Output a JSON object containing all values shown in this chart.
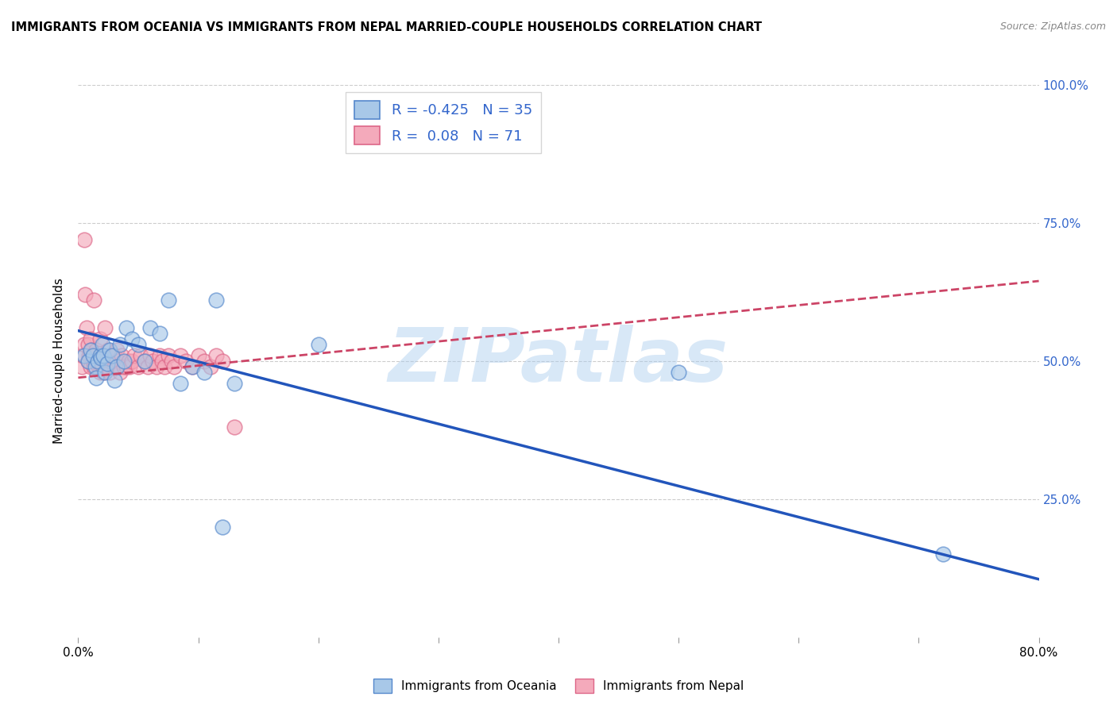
{
  "title": "IMMIGRANTS FROM OCEANIA VS IMMIGRANTS FROM NEPAL MARRIED-COUPLE HOUSEHOLDS CORRELATION CHART",
  "source": "Source: ZipAtlas.com",
  "ylabel": "Married-couple Households",
  "xlim": [
    0.0,
    0.8
  ],
  "ylim": [
    0.0,
    1.0
  ],
  "xticks": [
    0.0,
    0.1,
    0.2,
    0.3,
    0.4,
    0.5,
    0.6,
    0.7,
    0.8
  ],
  "xticklabels": [
    "0.0%",
    "",
    "",
    "",
    "",
    "",
    "",
    "",
    "80.0%"
  ],
  "yticks": [
    0.0,
    0.25,
    0.5,
    0.75,
    1.0
  ],
  "yticklabels_right": [
    "",
    "25.0%",
    "50.0%",
    "75.0%",
    "100.0%"
  ],
  "oceania_color": "#a8c8e8",
  "nepal_color": "#f4aabb",
  "oceania_edge": "#5588cc",
  "nepal_edge": "#dd6688",
  "trendline_oceania_color": "#2255bb",
  "trendline_nepal_color": "#cc4466",
  "legend_oceania_label": "Immigrants from Oceania",
  "legend_nepal_label": "Immigrants from Nepal",
  "R_oceania": -0.425,
  "N_oceania": 35,
  "R_nepal": 0.08,
  "N_nepal": 71,
  "watermark": "ZIPatlas",
  "background_color": "#ffffff",
  "grid_color": "#cccccc",
  "oceania_trendline": [
    0.0,
    0.8,
    0.555,
    0.105
  ],
  "nepal_trendline": [
    0.0,
    0.8,
    0.47,
    0.645
  ],
  "oceania_x": [
    0.005,
    0.008,
    0.01,
    0.012,
    0.014,
    0.015,
    0.016,
    0.018,
    0.019,
    0.02,
    0.021,
    0.022,
    0.024,
    0.026,
    0.028,
    0.03,
    0.032,
    0.035,
    0.038,
    0.04,
    0.045,
    0.05,
    0.055,
    0.06,
    0.068,
    0.075,
    0.085,
    0.095,
    0.105,
    0.115,
    0.12,
    0.13,
    0.2,
    0.5,
    0.72
  ],
  "oceania_y": [
    0.51,
    0.5,
    0.52,
    0.51,
    0.49,
    0.47,
    0.5,
    0.51,
    0.505,
    0.53,
    0.51,
    0.48,
    0.495,
    0.52,
    0.51,
    0.465,
    0.49,
    0.53,
    0.5,
    0.56,
    0.54,
    0.53,
    0.5,
    0.56,
    0.55,
    0.61,
    0.46,
    0.49,
    0.48,
    0.61,
    0.2,
    0.46,
    0.53,
    0.48,
    0.15
  ],
  "nepal_x": [
    0.003,
    0.004,
    0.005,
    0.005,
    0.006,
    0.007,
    0.008,
    0.008,
    0.009,
    0.01,
    0.01,
    0.01,
    0.011,
    0.012,
    0.013,
    0.013,
    0.014,
    0.015,
    0.015,
    0.016,
    0.017,
    0.018,
    0.018,
    0.019,
    0.02,
    0.02,
    0.021,
    0.022,
    0.022,
    0.023,
    0.024,
    0.025,
    0.025,
    0.026,
    0.027,
    0.028,
    0.03,
    0.03,
    0.032,
    0.033,
    0.034,
    0.035,
    0.036,
    0.038,
    0.04,
    0.042,
    0.043,
    0.045,
    0.047,
    0.05,
    0.052,
    0.055,
    0.058,
    0.06,
    0.062,
    0.065,
    0.068,
    0.07,
    0.072,
    0.075,
    0.078,
    0.08,
    0.085,
    0.09,
    0.095,
    0.1,
    0.105,
    0.11,
    0.115,
    0.12,
    0.13
  ],
  "nepal_y": [
    0.49,
    0.51,
    0.53,
    0.72,
    0.62,
    0.56,
    0.5,
    0.53,
    0.51,
    0.49,
    0.51,
    0.54,
    0.52,
    0.5,
    0.61,
    0.49,
    0.5,
    0.51,
    0.52,
    0.5,
    0.49,
    0.48,
    0.54,
    0.5,
    0.49,
    0.51,
    0.48,
    0.5,
    0.56,
    0.51,
    0.5,
    0.49,
    0.52,
    0.48,
    0.5,
    0.51,
    0.49,
    0.51,
    0.52,
    0.5,
    0.49,
    0.48,
    0.51,
    0.49,
    0.49,
    0.5,
    0.49,
    0.5,
    0.51,
    0.49,
    0.51,
    0.5,
    0.49,
    0.51,
    0.5,
    0.49,
    0.51,
    0.5,
    0.49,
    0.51,
    0.5,
    0.49,
    0.51,
    0.5,
    0.49,
    0.51,
    0.5,
    0.49,
    0.51,
    0.5,
    0.38
  ]
}
